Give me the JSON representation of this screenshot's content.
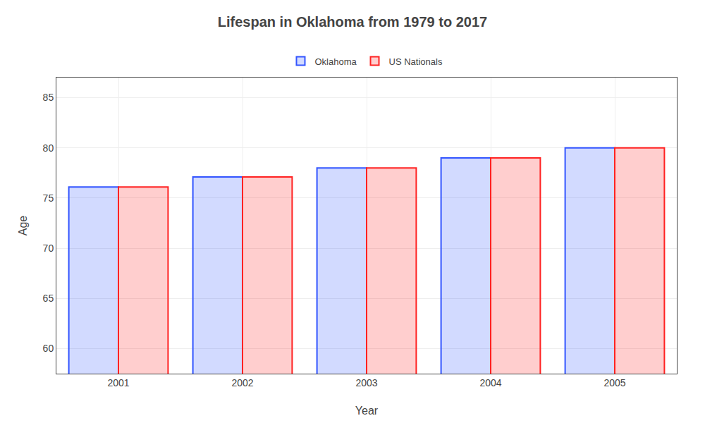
{
  "chart_data": {
    "type": "bar",
    "title": "Lifespan in Oklahoma from 1979 to 2017",
    "xlabel": "Year",
    "ylabel": "Age",
    "categories": [
      "2001",
      "2002",
      "2003",
      "2004",
      "2005"
    ],
    "series": [
      {
        "name": "Oklahoma",
        "color": "#3355ff",
        "values": [
          76.1,
          77.1,
          78.0,
          79.0,
          80.0
        ]
      },
      {
        "name": "US Nationals",
        "color": "#ff2222",
        "values": [
          76.1,
          77.1,
          78.0,
          79.0,
          80.0
        ]
      }
    ],
    "ylim": [
      57.5,
      87
    ],
    "yticks": [
      60,
      65,
      70,
      75,
      80,
      85
    ],
    "grid": true,
    "legend": "upper center"
  }
}
